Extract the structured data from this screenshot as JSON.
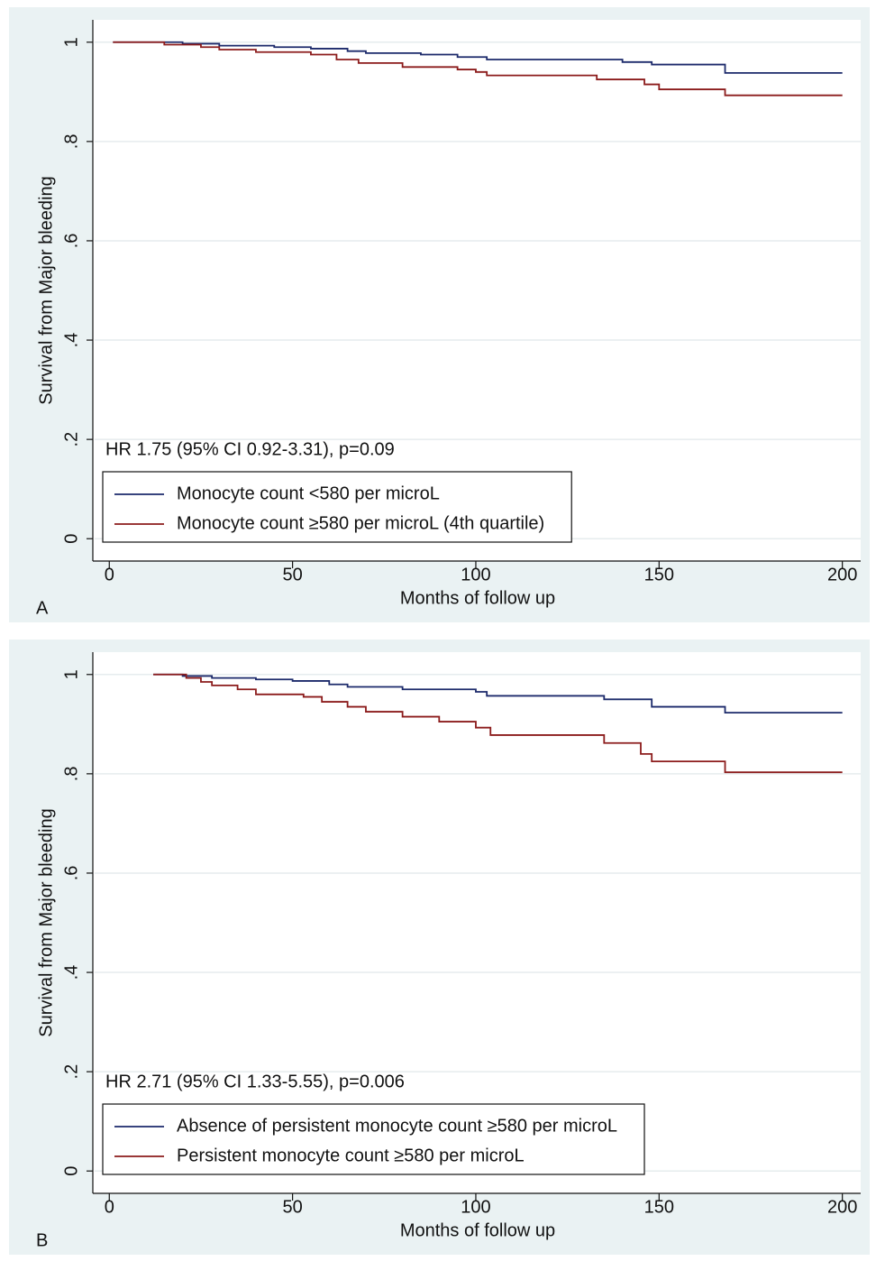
{
  "chart_data": [
    {
      "type": "line",
      "panel_label": "A",
      "annotation": "HR 1.75 (95% CI 0.92-3.31), p=0.09",
      "xlabel": "Months of follow up",
      "ylabel": "Survival from Major bleeding",
      "xlim": [
        -4,
        205
      ],
      "ylim": [
        -0.045,
        1.045
      ],
      "xticks": [
        0,
        50,
        100,
        150,
        200
      ],
      "yticks": [
        0,
        {
          "value": 0.2,
          "label": ".2"
        },
        {
          "value": 0.4,
          "label": ".4"
        },
        {
          "value": 0.6,
          "label": ".6"
        },
        {
          "value": 0.8,
          "label": ".8"
        },
        1
      ],
      "grid": true,
      "legend": "lower left",
      "series": [
        {
          "name": "Monocyte count <580 per microL",
          "color": "#1c2a6b",
          "x": [
            1,
            20,
            20,
            30,
            30,
            45,
            45,
            55,
            55,
            65,
            65,
            70,
            70,
            85,
            85,
            95,
            95,
            103,
            103,
            140,
            140,
            148,
            148,
            168,
            168,
            200
          ],
          "values": [
            1,
            1,
            0.997,
            0.997,
            0.993,
            0.993,
            0.99,
            0.99,
            0.987,
            0.987,
            0.982,
            0.982,
            0.978,
            0.978,
            0.975,
            0.975,
            0.97,
            0.97,
            0.965,
            0.965,
            0.96,
            0.96,
            0.955,
            0.955,
            0.938,
            0.938
          ]
        },
        {
          "name": "Monocyte count ≥580 per microL (4th quartile)",
          "color": "#8c1c1c",
          "x": [
            1,
            15,
            15,
            25,
            25,
            30,
            30,
            40,
            40,
            55,
            55,
            62,
            62,
            68,
            68,
            80,
            80,
            95,
            95,
            100,
            100,
            103,
            103,
            133,
            133,
            146,
            146,
            150,
            150,
            168,
            168,
            200
          ],
          "values": [
            1,
            1,
            0.995,
            0.995,
            0.99,
            0.99,
            0.985,
            0.985,
            0.98,
            0.98,
            0.975,
            0.975,
            0.965,
            0.965,
            0.958,
            0.958,
            0.95,
            0.95,
            0.945,
            0.945,
            0.94,
            0.94,
            0.933,
            0.933,
            0.925,
            0.925,
            0.915,
            0.915,
            0.905,
            0.905,
            0.893,
            0.893
          ]
        }
      ]
    },
    {
      "type": "line",
      "panel_label": "B",
      "annotation": "HR 2.71 (95% CI 1.33-5.55), p=0.006",
      "xlabel": "Months of follow up",
      "ylabel": "Survival from Major bleeding",
      "xlim": [
        -4,
        205
      ],
      "ylim": [
        -0.045,
        1.045
      ],
      "xticks": [
        0,
        50,
        100,
        150,
        200
      ],
      "yticks": [
        0,
        {
          "value": 0.2,
          "label": ".2"
        },
        {
          "value": 0.4,
          "label": ".4"
        },
        {
          "value": 0.6,
          "label": ".6"
        },
        {
          "value": 0.8,
          "label": ".8"
        },
        1
      ],
      "grid": true,
      "legend": "lower left",
      "series": [
        {
          "name": "Absence of persistent monocyte count ≥580 per microL",
          "color": "#1c2a6b",
          "x": [
            12,
            20,
            20,
            28,
            28,
            40,
            40,
            50,
            50,
            60,
            60,
            65,
            65,
            80,
            80,
            100,
            100,
            103,
            103,
            135,
            135,
            148,
            148,
            168,
            168,
            200
          ],
          "values": [
            1,
            1,
            0.997,
            0.997,
            0.993,
            0.993,
            0.99,
            0.99,
            0.987,
            0.987,
            0.98,
            0.98,
            0.975,
            0.975,
            0.97,
            0.97,
            0.965,
            0.965,
            0.957,
            0.957,
            0.95,
            0.95,
            0.935,
            0.935,
            0.923,
            0.923
          ]
        },
        {
          "name": "Persistent monocyte count ≥580 per microL",
          "color": "#8c1c1c",
          "x": [
            12,
            21,
            21,
            25,
            25,
            28,
            28,
            35,
            35,
            40,
            40,
            53,
            53,
            58,
            58,
            65,
            65,
            70,
            70,
            80,
            80,
            90,
            90,
            100,
            100,
            104,
            104,
            135,
            135,
            145,
            145,
            148,
            148,
            168,
            168,
            200
          ],
          "values": [
            1,
            1,
            0.993,
            0.993,
            0.985,
            0.985,
            0.978,
            0.978,
            0.97,
            0.97,
            0.96,
            0.96,
            0.955,
            0.955,
            0.945,
            0.945,
            0.935,
            0.935,
            0.925,
            0.925,
            0.915,
            0.915,
            0.905,
            0.905,
            0.893,
            0.893,
            0.878,
            0.878,
            0.862,
            0.862,
            0.84,
            0.84,
            0.825,
            0.825,
            0.803,
            0.803
          ]
        }
      ]
    }
  ]
}
